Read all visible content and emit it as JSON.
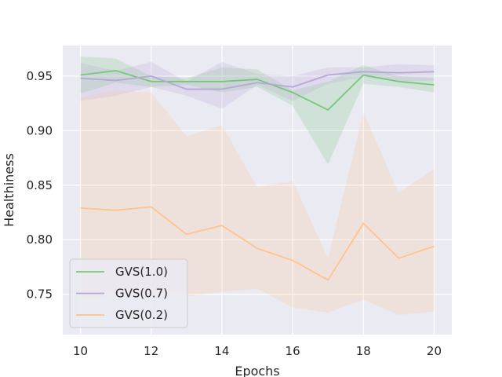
{
  "chart_data": {
    "type": "line",
    "title": "",
    "xlabel": "Epochs",
    "ylabel": "Healthiness",
    "x": [
      10,
      11,
      12,
      13,
      14,
      15,
      16,
      17,
      18,
      19,
      20
    ],
    "xlim": [
      9.5,
      20.5
    ],
    "ylim": [
      0.713,
      0.978
    ],
    "xticks": [
      10,
      12,
      14,
      16,
      18,
      20
    ],
    "yticks": [
      0.75,
      0.8,
      0.85,
      0.9,
      0.95
    ],
    "ytick_labels": [
      "0.75",
      "0.80",
      "0.85",
      "0.90",
      "0.95"
    ],
    "grid": true,
    "legend_position": "lower-left",
    "series": [
      {
        "name": "GVS(1.0)",
        "color": "#77c77a",
        "values": [
          0.951,
          0.955,
          0.945,
          0.945,
          0.945,
          0.947,
          0.935,
          0.919,
          0.951,
          0.945,
          0.942
        ],
        "upper": [
          0.968,
          0.966,
          0.95,
          0.948,
          0.958,
          0.956,
          0.937,
          0.945,
          0.96,
          0.95,
          0.948
        ],
        "lower": [
          0.934,
          0.944,
          0.94,
          0.942,
          0.935,
          0.94,
          0.923,
          0.869,
          0.943,
          0.94,
          0.935
        ]
      },
      {
        "name": "GVS(0.7)",
        "color": "#b7a6d8",
        "values": [
          0.948,
          0.946,
          0.95,
          0.938,
          0.938,
          0.944,
          0.94,
          0.951,
          0.954,
          0.953,
          0.954
        ],
        "upper": [
          0.962,
          0.955,
          0.963,
          0.945,
          0.963,
          0.952,
          0.95,
          0.958,
          0.958,
          0.961,
          0.96
        ],
        "lower": [
          0.927,
          0.932,
          0.94,
          0.932,
          0.92,
          0.942,
          0.927,
          0.943,
          0.949,
          0.945,
          0.946
        ]
      },
      {
        "name": "GVS(0.2)",
        "color": "#ffc38c",
        "values": [
          0.829,
          0.827,
          0.83,
          0.805,
          0.813,
          0.792,
          0.781,
          0.763,
          0.815,
          0.783,
          0.794
        ],
        "upper": [
          0.93,
          0.937,
          0.935,
          0.895,
          0.905,
          0.848,
          0.854,
          0.783,
          0.917,
          0.843,
          0.865
        ],
        "lower": [
          0.745,
          0.748,
          0.748,
          0.748,
          0.752,
          0.755,
          0.738,
          0.733,
          0.745,
          0.731,
          0.734
        ]
      }
    ]
  }
}
